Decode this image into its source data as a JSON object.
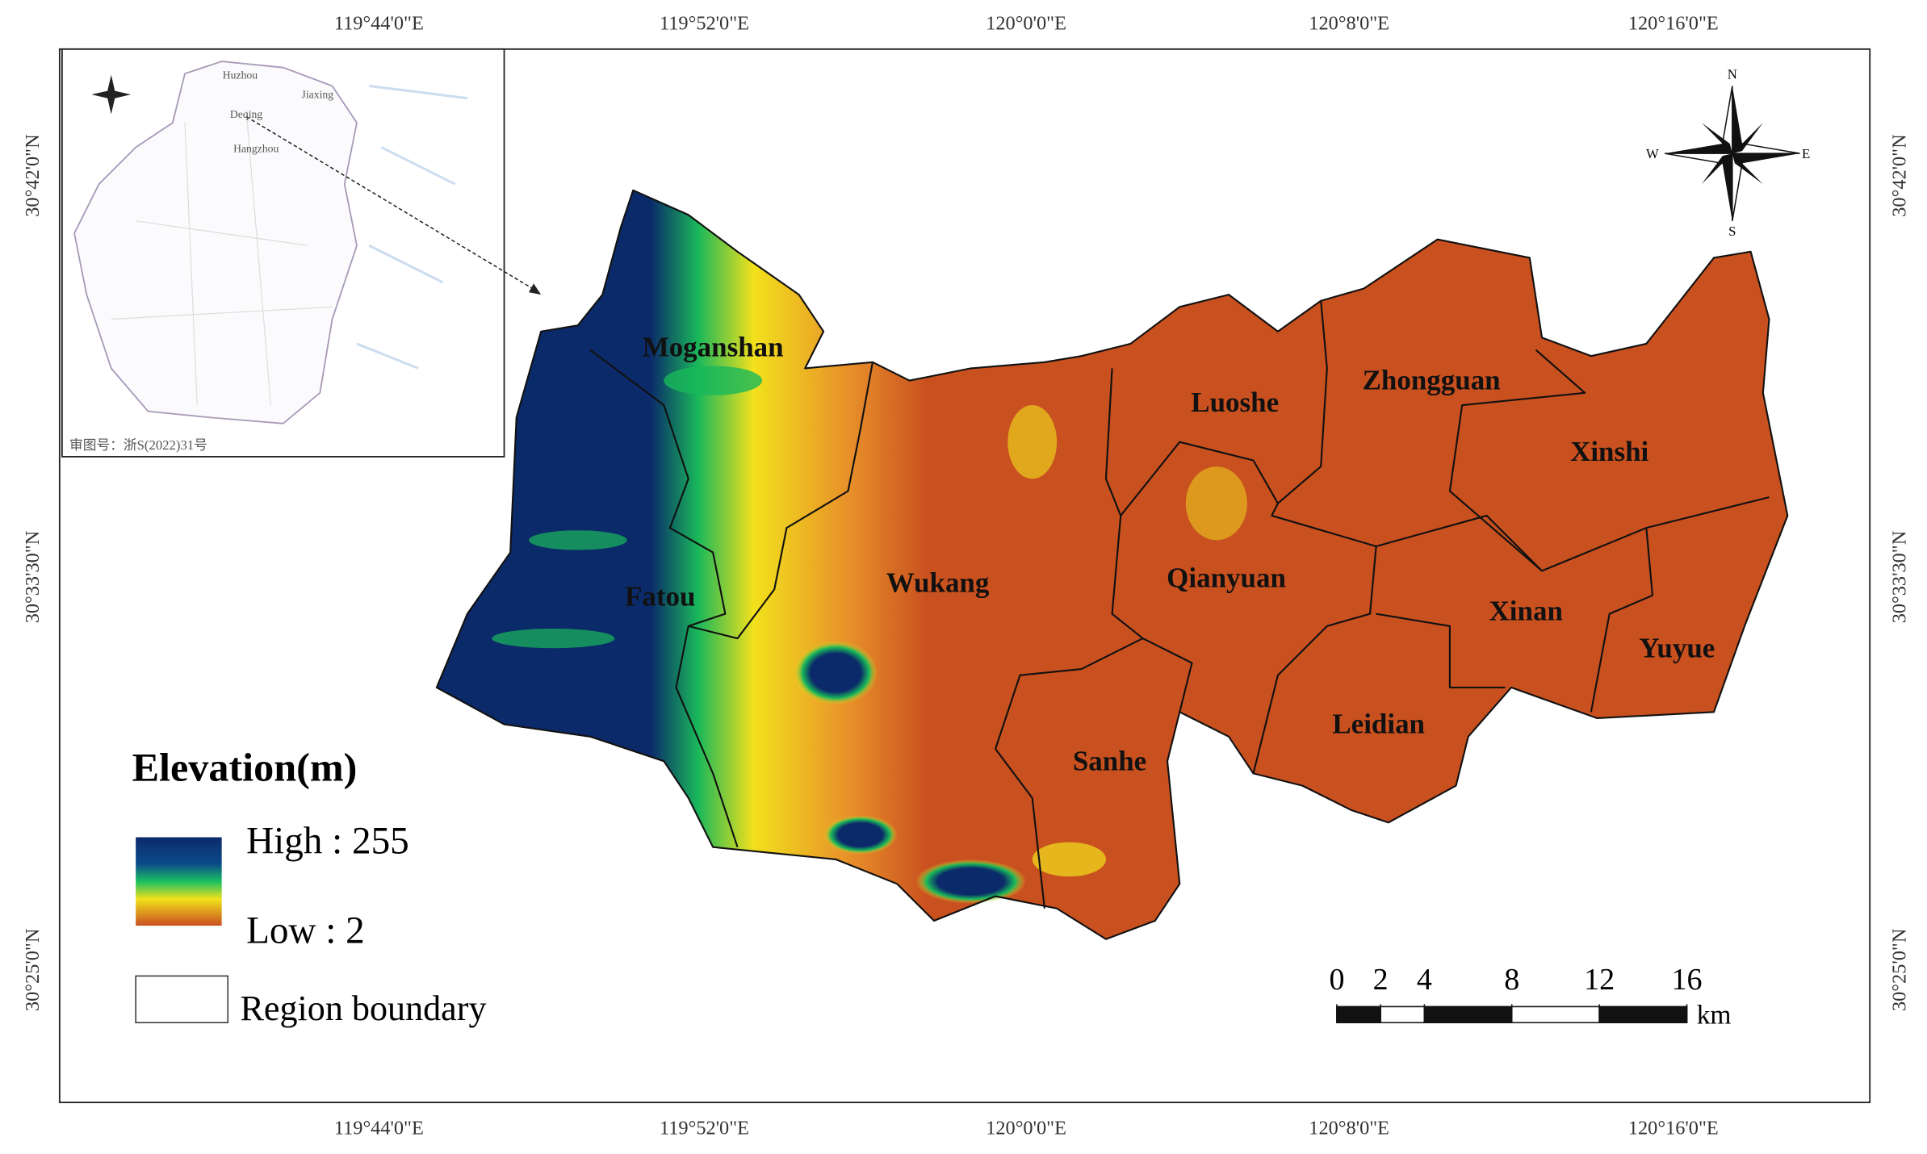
{
  "frame": {
    "top_longitudes": [
      "119°44'0\"E",
      "119°52'0\"E",
      "120°0'0\"E",
      "120°8'0\"E",
      "120°16'0\"E"
    ],
    "bottom_longitudes": [
      "119°44'0\"E",
      "119°52'0\"E",
      "120°0'0\"E",
      "120°8'0\"E",
      "120°16'0\"E"
    ],
    "left_latitudes": [
      "30°42'0\"N",
      "30°33'30\"N",
      "30°25'0\"N"
    ],
    "right_latitudes": [
      "30°42'0\"N",
      "30°33'30\"N",
      "30°25'0\"N"
    ]
  },
  "inset": {
    "labels": [
      "Huzhou",
      "Jiaxing",
      "Deqing",
      "Hangzhou"
    ],
    "approval": "审图号：浙S(2022)31号"
  },
  "regions": [
    "Moganshan",
    "Fatou",
    "Wukang",
    "Luoshe",
    "Zhongguan",
    "Xinshi",
    "Qianyuan",
    "Xinan",
    "Yuyue",
    "Leidian",
    "Sanhe"
  ],
  "legend": {
    "title": "Elevation(m)",
    "high": "High : 255",
    "low": "Low : 2",
    "boundary": "Region boundary"
  },
  "scale_bar": {
    "ticks": [
      0,
      2,
      4,
      8,
      12,
      16
    ],
    "unit": "km"
  },
  "compass": {
    "n": "N",
    "s": "S",
    "e": "E",
    "w": "W"
  }
}
